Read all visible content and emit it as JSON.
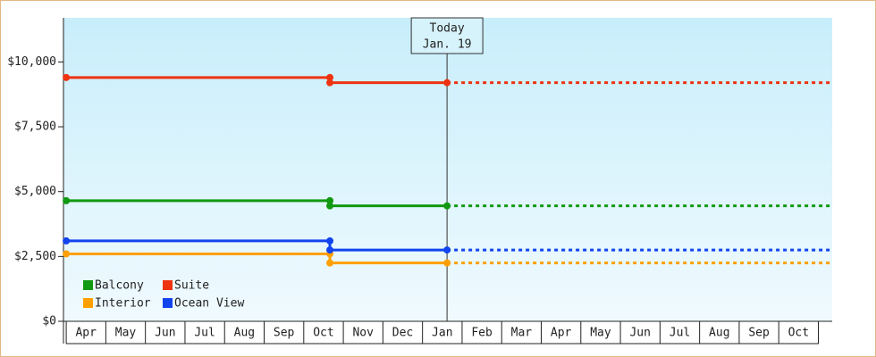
{
  "chart_data": {
    "type": "line",
    "x": [
      0,
      6.66,
      6.66,
      9.62
    ],
    "xlim": [
      -0.07,
      19.35
    ],
    "xticks": [
      {
        "value": 0.5,
        "label": "Apr"
      },
      {
        "value": 1.5,
        "label": "May"
      },
      {
        "value": 2.5,
        "label": "Jun"
      },
      {
        "value": 3.5,
        "label": "Jul"
      },
      {
        "value": 4.5,
        "label": "Aug"
      },
      {
        "value": 5.5,
        "label": "Sep"
      },
      {
        "value": 6.5,
        "label": "Oct"
      },
      {
        "value": 7.5,
        "label": "Nov"
      },
      {
        "value": 8.5,
        "label": "Dec"
      },
      {
        "value": 9.5,
        "label": "Jan"
      },
      {
        "value": 10.5,
        "label": "Feb"
      },
      {
        "value": 11.5,
        "label": "Mar"
      },
      {
        "value": 12.5,
        "label": "Apr"
      },
      {
        "value": 13.5,
        "label": "May"
      },
      {
        "value": 14.5,
        "label": "Jun"
      },
      {
        "value": 15.5,
        "label": "Jul"
      },
      {
        "value": 16.5,
        "label": "Aug"
      },
      {
        "value": 17.5,
        "label": "Sep"
      },
      {
        "value": 18.5,
        "label": "Oct"
      }
    ],
    "ylim": [
      0,
      11700
    ],
    "yticks": [
      {
        "value": 0,
        "label": "$0"
      },
      {
        "value": 2500,
        "label": "$2,500"
      },
      {
        "value": 5000,
        "label": "$5,000"
      },
      {
        "value": 7500,
        "label": "$7,500"
      },
      {
        "value": 10000,
        "label": "$10,000"
      }
    ],
    "series": [
      {
        "name": "Balcony",
        "color": "#119911",
        "values": [
          4650,
          4650,
          4450,
          4450
        ]
      },
      {
        "name": "Suite",
        "color": "#ee3311",
        "values": [
          9400,
          9400,
          9200,
          9200
        ]
      },
      {
        "name": "Interior",
        "color": "#ffa000",
        "values": [
          2600,
          2600,
          2250,
          2250
        ]
      },
      {
        "name": "Ocean View",
        "color": "#1144ee",
        "values": [
          3100,
          3100,
          2750,
          2750
        ]
      }
    ],
    "annotation": {
      "x": 9.62,
      "lines": [
        "Today",
        "Jan. 19"
      ]
    }
  }
}
